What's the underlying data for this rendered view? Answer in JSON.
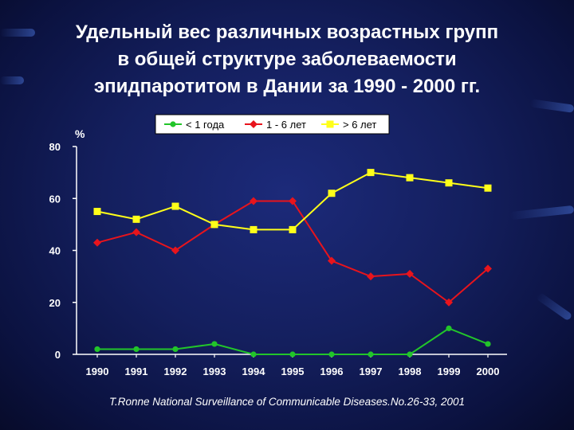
{
  "slide": {
    "title_lines": [
      "Удельный вес различных возрастных групп",
      "в общей структуре  заболеваемости",
      "эпидпаротитом в Дании за 1990 - 2000 гг."
    ],
    "citation": "T.Ronne  National Surveillance of Communicable Diseases.No.26-33, 2001"
  },
  "chart_data": {
    "type": "line",
    "title": "",
    "xlabel": "",
    "ylabel": "%",
    "categories": [
      "1990",
      "1991",
      "1992",
      "1993",
      "1994",
      "1995",
      "1996",
      "1997",
      "1998",
      "1999",
      "2000"
    ],
    "ylim": [
      0,
      80
    ],
    "yticks": [
      0,
      20,
      40,
      60,
      80
    ],
    "grid": false,
    "legend_position": "top",
    "series": [
      {
        "name": "< 1 года",
        "color": "#22c52a",
        "marker": "circle",
        "values": [
          2,
          2,
          2,
          4,
          0,
          0,
          0,
          0,
          0,
          10,
          4
        ]
      },
      {
        "name": "1 - 6 лет",
        "color": "#e8141c",
        "marker": "diamond",
        "values": [
          43,
          47,
          40,
          50,
          59,
          59,
          36,
          30,
          31,
          20,
          33
        ]
      },
      {
        "name": "> 6 лет",
        "color": "#ffff19",
        "marker": "square",
        "values": [
          55,
          52,
          57,
          50,
          48,
          48,
          62,
          70,
          68,
          66,
          64
        ]
      }
    ]
  }
}
